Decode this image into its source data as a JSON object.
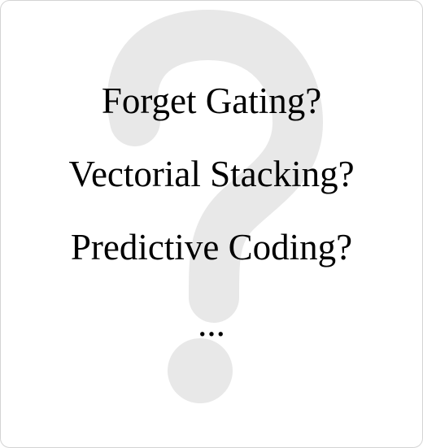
{
  "items": [
    {
      "label": "Forget Gating?"
    },
    {
      "label": "Vectorial Stacking?"
    },
    {
      "label": "Predictive Coding?"
    },
    {
      "label": "..."
    }
  ],
  "background_glyph": {
    "icon": "question-mark-icon",
    "color": "#e8e8e8"
  }
}
